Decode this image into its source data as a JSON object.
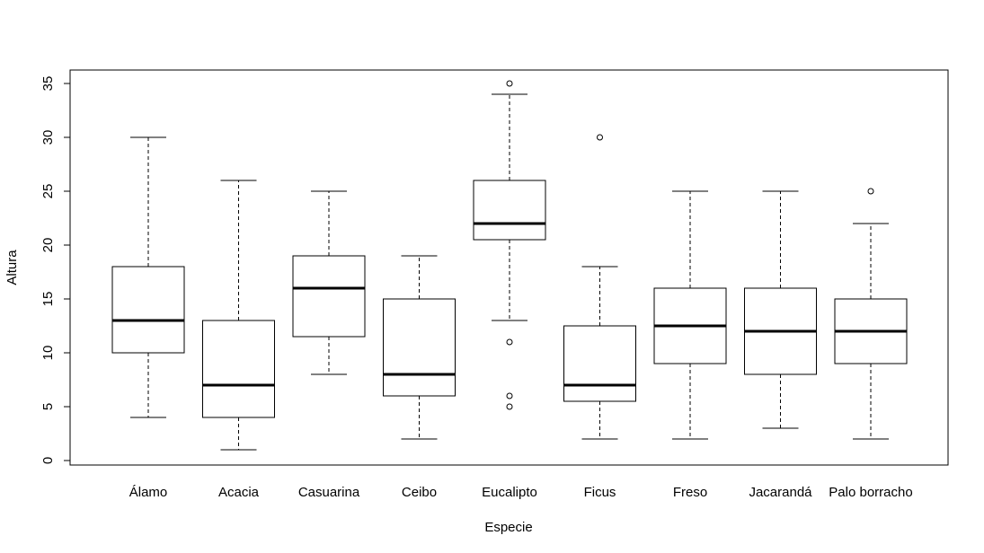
{
  "chart_data": {
    "type": "boxplot",
    "xlabel": "Especie",
    "ylabel": "Altura",
    "ylim": [
      0,
      35
    ],
    "yticks": [
      0,
      5,
      10,
      15,
      20,
      25,
      30,
      35
    ],
    "categories": [
      "Álamo",
      "Acacia",
      "Casuarina",
      "Ceibo",
      "Eucalipto",
      "Ficus",
      "Freso",
      "Jacarandá",
      "Palo borracho"
    ],
    "boxes": [
      {
        "category": "Álamo",
        "whisker_low": 4,
        "q1": 10,
        "median": 13,
        "q3": 18,
        "whisker_high": 30,
        "outliers": []
      },
      {
        "category": "Acacia",
        "whisker_low": 1,
        "q1": 4,
        "median": 7,
        "q3": 13,
        "whisker_high": 26,
        "outliers": []
      },
      {
        "category": "Casuarina",
        "whisker_low": 8,
        "q1": 11.5,
        "median": 16,
        "q3": 19,
        "whisker_high": 25,
        "outliers": []
      },
      {
        "category": "Ceibo",
        "whisker_low": 2,
        "q1": 6,
        "median": 8,
        "q3": 15,
        "whisker_high": 19,
        "outliers": []
      },
      {
        "category": "Eucalipto",
        "whisker_low": 13,
        "q1": 20.5,
        "median": 22,
        "q3": 26,
        "whisker_high": 34,
        "outliers": [
          35,
          11,
          6,
          5
        ]
      },
      {
        "category": "Ficus",
        "whisker_low": 2,
        "q1": 5.5,
        "median": 7,
        "q3": 12.5,
        "whisker_high": 18,
        "outliers": [
          30
        ]
      },
      {
        "category": "Freso",
        "whisker_low": 2,
        "q1": 9,
        "median": 12.5,
        "q3": 16,
        "whisker_high": 25,
        "outliers": []
      },
      {
        "category": "Jacarandá",
        "whisker_low": 3,
        "q1": 8,
        "median": 12,
        "q3": 16,
        "whisker_high": 25,
        "outliers": []
      },
      {
        "category": "Palo borracho",
        "whisker_low": 2,
        "q1": 9,
        "median": 12,
        "q3": 15,
        "whisker_high": 22,
        "outliers": [
          25
        ]
      }
    ],
    "grid": false,
    "colors": {
      "stroke": "#000000",
      "fill": "#ffffff"
    }
  }
}
